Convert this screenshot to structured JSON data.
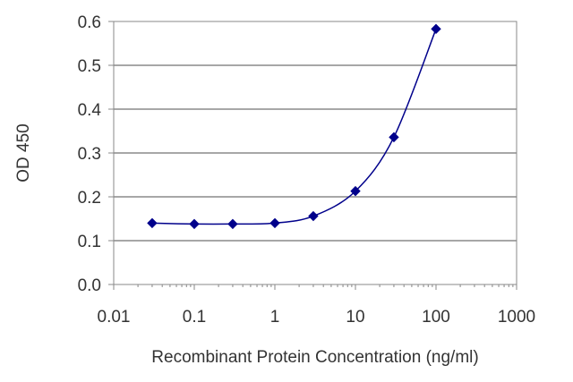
{
  "chart_data": {
    "type": "line",
    "title": "",
    "xlabel": "Recombinant Protein Concentration (ng/ml)",
    "ylabel": "OD 450",
    "x_scale": "log",
    "xlim": [
      0.01,
      1000
    ],
    "ylim": [
      0.0,
      0.6
    ],
    "x_ticks": [
      "0.01",
      "0.1",
      "1",
      "10",
      "100",
      "1000"
    ],
    "y_ticks": [
      "0.0",
      "0.1",
      "0.2",
      "0.3",
      "0.4",
      "0.5",
      "0.6"
    ],
    "grid": "horizontal",
    "legend": "none",
    "series": [
      {
        "color": "#00008b",
        "x": [
          0.03,
          0.1,
          0.3,
          1,
          3,
          10,
          30,
          100
        ],
        "y": [
          0.14,
          0.138,
          0.138,
          0.14,
          0.156,
          0.213,
          0.336,
          0.583
        ]
      }
    ]
  }
}
